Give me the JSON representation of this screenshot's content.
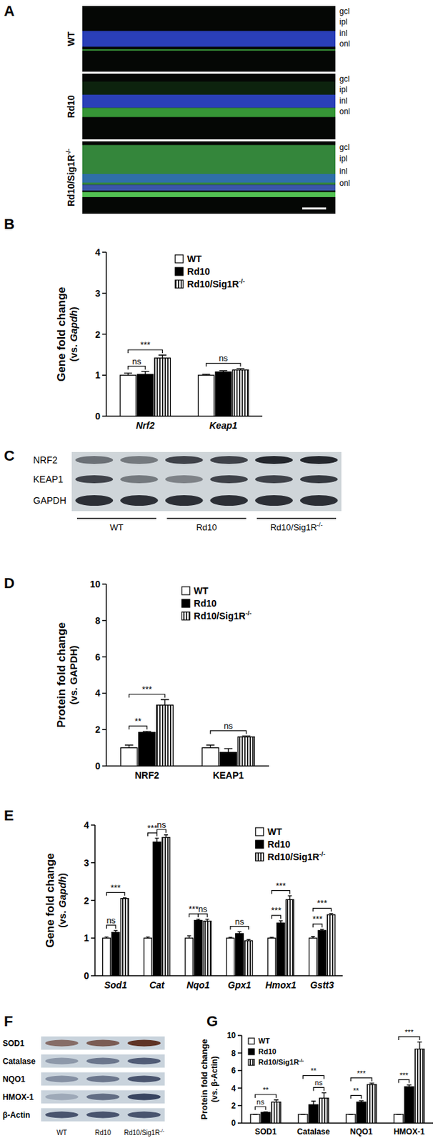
{
  "chart_data": [
    {
      "type": "bar",
      "title": "B",
      "ylabel": [
        "Gene fold change",
        "(vs. Gapdh)"
      ],
      "categories": [
        "Nrf2",
        "Keap1"
      ],
      "series": [
        {
          "name": "WT",
          "color": "#ffffff",
          "values": [
            1.0,
            1.0
          ],
          "errors": [
            0.05,
            0.02
          ]
        },
        {
          "name": "Rd10",
          "color": "#000000",
          "values": [
            1.02,
            1.08
          ],
          "errors": [
            0.07,
            0.03
          ]
        },
        {
          "name": "Rd10/Sig1R-/-",
          "color": "#ffffff",
          "marker": "vertical-stripes",
          "values": [
            1.42,
            1.13
          ],
          "errors": [
            0.07,
            0.03
          ]
        }
      ],
      "ylim": [
        0,
        4
      ],
      "yticks": [
        0,
        1,
        2,
        3,
        4
      ],
      "legend": "upper right",
      "annotations": [
        {
          "text": "ns",
          "category": 0,
          "from": 0,
          "to": 1
        },
        {
          "text": "***",
          "category": 0,
          "from": 0,
          "to": 2
        },
        {
          "text": "ns",
          "category": 1,
          "from": 0,
          "to": 2
        }
      ]
    },
    {
      "type": "bar",
      "title": "D",
      "ylabel": [
        "Protein fold change",
        "(vs. GAPDH)"
      ],
      "categories": [
        "NRF2",
        "KEAP1"
      ],
      "series": [
        {
          "name": "WT",
          "color": "#ffffff",
          "values": [
            1.0,
            1.0
          ],
          "errors": [
            0.15,
            0.15
          ]
        },
        {
          "name": "Rd10",
          "color": "#000000",
          "values": [
            1.85,
            0.75
          ],
          "errors": [
            0.05,
            0.2
          ]
        },
        {
          "name": "Rd10/Sig1R-/-",
          "color": "#ffffff",
          "marker": "vertical-stripes",
          "values": [
            3.35,
            1.6
          ],
          "errors": [
            0.3,
            0.05
          ]
        }
      ],
      "ylim": [
        0,
        10
      ],
      "yticks": [
        0,
        2,
        4,
        6,
        8,
        10
      ],
      "legend": "upper right",
      "annotations": [
        {
          "text": "**",
          "category": 0,
          "from": 0,
          "to": 1
        },
        {
          "text": "***",
          "category": 0,
          "from": 0,
          "to": 2
        },
        {
          "text": "ns",
          "category": 1,
          "from": 0,
          "to": 2
        }
      ]
    },
    {
      "type": "bar",
      "title": "E",
      "ylabel": [
        "Gene fold change",
        "(vs. Gapdh)"
      ],
      "categories": [
        "Sod1",
        "Cat",
        "Nqo1",
        "Gpx1",
        "Hmox1",
        "Gstt3"
      ],
      "series": [
        {
          "name": "WT",
          "color": "#ffffff",
          "values": [
            1.0,
            1.0,
            1.0,
            1.0,
            1.0,
            1.0
          ],
          "errors": [
            0.03,
            0.03,
            0.06,
            0.02,
            0.02,
            0.04
          ]
        },
        {
          "name": "Rd10",
          "color": "#000000",
          "values": [
            1.15,
            3.55,
            1.47,
            1.12,
            1.4,
            1.2
          ],
          "errors": [
            0.05,
            0.1,
            0.03,
            0.05,
            0.06,
            0.03
          ]
        },
        {
          "name": "Rd10/Sig1R-/-",
          "color": "#ffffff",
          "marker": "vertical-stripes",
          "values": [
            2.05,
            3.67,
            1.45,
            0.93,
            2.02,
            1.62
          ],
          "errors": [
            0.02,
            0.07,
            0.05,
            0.03,
            0.1,
            0.03
          ]
        }
      ],
      "ylim": [
        0,
        4
      ],
      "yticks": [
        0,
        1,
        2,
        3,
        4
      ],
      "legend": "upper right",
      "annotations": [
        {
          "text": "ns",
          "category": 0,
          "from": 0,
          "to": 1
        },
        {
          "text": "***",
          "category": 0,
          "from": 0,
          "to": 2
        },
        {
          "text": "***",
          "category": 1,
          "from": 0,
          "to": 1
        },
        {
          "text": "ns",
          "category": 1,
          "from": 1,
          "to": 2
        },
        {
          "text": "***",
          "category": 2,
          "from": 0,
          "to": 1
        },
        {
          "text": "ns",
          "category": 2,
          "from": 1,
          "to": 2
        },
        {
          "text": "ns",
          "category": 3,
          "from": 0,
          "to": 2
        },
        {
          "text": "***",
          "category": 4,
          "from": 0,
          "to": 1
        },
        {
          "text": "***",
          "category": 4,
          "from": 0,
          "to": 2
        },
        {
          "text": "***",
          "category": 5,
          "from": 0,
          "to": 1
        },
        {
          "text": "***",
          "category": 5,
          "from": 0,
          "to": 2
        }
      ]
    },
    {
      "type": "bar",
      "title": "G",
      "ylabel": [
        "Protein fold change",
        "(vs. β-Actin)"
      ],
      "categories": [
        "SOD1",
        "Catalase",
        "NQO1",
        "HMOX-1"
      ],
      "series": [
        {
          "name": "WT",
          "color": "#ffffff",
          "values": [
            1.0,
            1.0,
            1.0,
            1.0
          ],
          "errors": [
            0,
            0,
            0,
            0
          ]
        },
        {
          "name": "Rd10",
          "color": "#000000",
          "values": [
            1.22,
            2.1,
            2.4,
            4.15
          ],
          "errors": [
            0.05,
            0.4,
            0.15,
            0.2
          ]
        },
        {
          "name": "Rd10/Sig1R-/-",
          "color": "#ffffff",
          "marker": "vertical-stripes",
          "values": [
            2.4,
            2.85,
            4.4,
            8.45
          ],
          "errors": [
            0.25,
            0.6,
            0.15,
            0.8
          ]
        }
      ],
      "ylim": [
        0,
        10
      ],
      "yticks": [
        0,
        2,
        4,
        6,
        8,
        10
      ],
      "legend": "upper left",
      "annotations": [
        {
          "text": "ns",
          "category": 0,
          "from": 0,
          "to": 1
        },
        {
          "text": "**",
          "category": 0,
          "from": 0,
          "to": 2
        },
        {
          "text": "ns",
          "category": 1,
          "from": 1,
          "to": 2
        },
        {
          "text": "**",
          "category": 1,
          "from": 0,
          "to": 2
        },
        {
          "text": "**",
          "category": 2,
          "from": 0,
          "to": 1
        },
        {
          "text": "***",
          "category": 2,
          "from": 0,
          "to": 2
        },
        {
          "text": "***",
          "category": 3,
          "from": 0,
          "to": 1
        },
        {
          "text": "***",
          "category": 3,
          "from": 0,
          "to": 2
        }
      ]
    }
  ],
  "micrograph": {
    "title": "A",
    "rows": [
      "WT",
      "Rd10",
      "Rd10/Sig1R-/-"
    ],
    "layers": [
      "gcl",
      "ipl",
      "inl",
      "onl"
    ]
  },
  "blots": [
    {
      "title": "C",
      "rows": [
        "NRF2",
        "KEAP1",
        "GAPDH"
      ],
      "lanes": [
        "WT",
        "Rd10",
        "Rd10/Sig1R-/-"
      ]
    },
    {
      "title": "F",
      "rows": [
        "SOD1",
        "Catalase",
        "NQO1",
        "HMOX-1",
        "β-Actin"
      ],
      "lanes": [
        "WT",
        "Rd10",
        "Rd10/Sig1R-/-"
      ]
    }
  ]
}
